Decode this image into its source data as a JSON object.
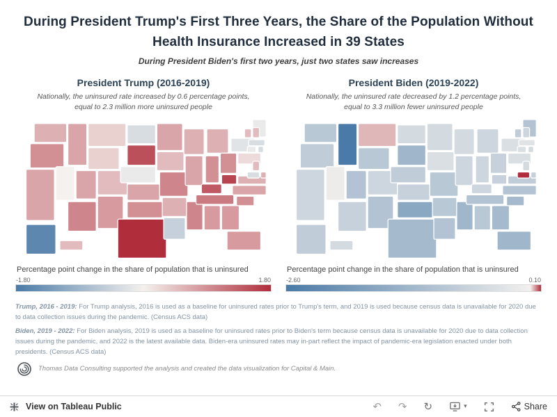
{
  "header": {
    "title": "During President Trump's First Three Years, the Share of the Population Without Health Insurance Increased in 39 States",
    "subtitle": "During President Biden's first two years, just two states saw increases"
  },
  "panels": [
    {
      "heading": "President Trump (2016-2019)",
      "subheading": "Nationally, the uninsured rate increased by 0.6 percentage points, equal to 2.3 million more uninsured people",
      "legend_title": "Percentage point change in the share of population that is uninsured",
      "legend_min_label": "-1.80",
      "legend_max_label": "1.80"
    },
    {
      "heading": "President Biden (2019-2022)",
      "subheading": "Nationally, the uninsured rate decreased by 1.2 percentage points, equal to 3.3 million fewer uninsured people",
      "legend_title": "Percentage point change in the share of population that is uninsured",
      "legend_min_label": "-2.60",
      "legend_max_label": "0.10"
    }
  ],
  "chart_data": [
    {
      "type": "choropleth",
      "title": "President Trump (2016-2019)",
      "metric": "Percentage point change in the share of population that is uninsured, 2016-2019",
      "units": "percentage points",
      "national_change": 0.6,
      "states_increased": 39,
      "scale": {
        "min": -1.8,
        "max": 1.8,
        "low_color": "#4a7aa7",
        "mid_color": "#f4f1ee",
        "high_color": "#b02e3c"
      },
      "state_values_estimated": {
        "AL": 0.8,
        "AK": -1.6,
        "AZ": 1.0,
        "AR": 0.6,
        "CA": 0.7,
        "CO": 0.5,
        "CT": -0.1,
        "DE": 0.6,
        "FL": 0.8,
        "GA": 0.8,
        "HI": 0.5,
        "ID": 0.7,
        "IL": 0.7,
        "IN": 0.9,
        "IA": 0.5,
        "KS": 0.7,
        "KY": 1.4,
        "LA": -0.5,
        "ME": -0.1,
        "MD": -0.3,
        "MA": -0.3,
        "MI": 0.6,
        "MN": 0.7,
        "MS": 1.0,
        "MO": 1.0,
        "MT": 0.3,
        "NE": -0.1,
        "NV": 0.0,
        "NH": 0.5,
        "NJ": 0.5,
        "NM": 0.8,
        "NY": -0.2,
        "NC": 0.7,
        "ND": -0.3,
        "OH": 0.9,
        "OK": 0.9,
        "OR": 0.9,
        "PA": 0.2,
        "RI": -0.3,
        "SC": 0.9,
        "SD": 1.5,
        "TN": 1.1,
        "TX": 1.8,
        "UT": 0.7,
        "VT": 0.5,
        "VA": 0.6,
        "WA": 0.6,
        "WV": 1.6,
        "WI": 0.6,
        "WY": 0.3
      }
    },
    {
      "type": "choropleth",
      "title": "President Biden (2019-2022)",
      "metric": "Percentage point change in the share of population that is uninsured, 2019-2022",
      "units": "percentage points",
      "national_change": -1.2,
      "states_increased": 2,
      "scale": {
        "min": -2.6,
        "max": 0.1,
        "low_color": "#4a7aa7",
        "mid_color": "#f4f1ee",
        "high_color": "#b02e3c"
      },
      "state_values_estimated": {
        "AL": -0.9,
        "AK": -0.8,
        "AZ": -0.7,
        "AR": -0.9,
        "CA": -0.6,
        "CO": -0.6,
        "CT": -0.4,
        "DE": -0.7,
        "FL": -1.3,
        "GA": -1.2,
        "HI": -0.5,
        "ID": -2.6,
        "IL": -0.6,
        "IN": -0.6,
        "IA": -0.4,
        "KS": -0.7,
        "KY": -0.6,
        "LA": -1.0,
        "ME": -1.0,
        "MD": 0.1,
        "MA": -0.3,
        "MI": -0.6,
        "MN": -0.5,
        "MS": -1.3,
        "MO": -0.9,
        "MT": 0.03,
        "NE": -0.8,
        "NV": -0.1,
        "NH": -0.6,
        "NJ": -0.5,
        "NM": -1.0,
        "NY": -0.4,
        "NC": -1.0,
        "ND": -0.5,
        "OH": -0.7,
        "OK": -1.6,
        "OR": -0.8,
        "PA": -0.4,
        "RI": -0.5,
        "SC": -1.2,
        "SD": -1.3,
        "TN": -1.0,
        "TX": -1.2,
        "UT": -1.0,
        "VT": -0.8,
        "VA": -0.8,
        "WA": -0.9,
        "WV": -0.7,
        "WI": -0.5,
        "WY": -0.9
      }
    }
  ],
  "footnotes": [
    {
      "lead": "Trump, 2016 - 2019:",
      "text": "For Trump analysis, 2016 is used as a baseline for uninsured rates prior to Trump's term, and 2019 is used because census data is unavailable for 2020 due to data collection issues during the pandemic.  (Census ACS data)"
    },
    {
      "lead": "Biden, 2019 - 2022:",
      "text": "For Biden analysis, 2019 is used as a baseline for uninsured rates prior to Biden's term because census data is unavailable for 2020 due to data collection issues during the pandemic, and 2022 is the latest available data. Biden-era uninsured rates may in-part reflect the impact of pandemic-era legislation enacted under both presidents. (Census ACS data)"
    }
  ],
  "attribution": {
    "text": "Thomas Data Consulting supported the analysis and created the data visualization for Capital & Main."
  },
  "toolbar": {
    "view_label": "View on Tableau Public",
    "share_label": "Share",
    "icons": {
      "undo": "↶",
      "redo": "↷",
      "replay": "↻",
      "caret": "▾"
    }
  }
}
